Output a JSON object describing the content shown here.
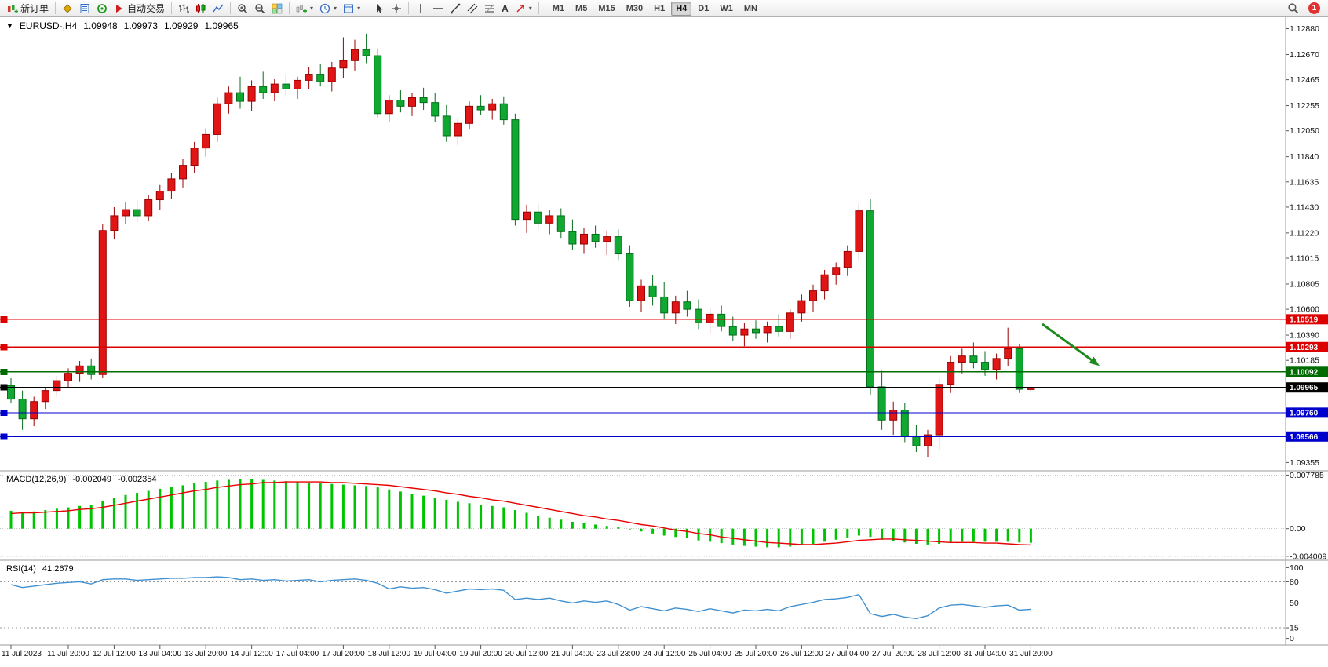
{
  "toolbar": {
    "new_order_label": "新订单",
    "autotrading_label": "自动交易",
    "timeframes": [
      "M1",
      "M5",
      "M15",
      "M30",
      "H1",
      "H4",
      "D1",
      "W1",
      "MN"
    ],
    "active_timeframe": "H4",
    "notification_count": "1"
  },
  "chart_header": {
    "symbol_period": "EURUSD-,H4",
    "open": "1.09948",
    "high": "1.09973",
    "low": "1.09929",
    "close": "1.09965"
  },
  "indicators": {
    "macd": {
      "name": "MACD(12,26,9)",
      "value_main": "-0.002049",
      "value_signal": "-0.002354"
    },
    "rsi": {
      "name": "RSI(14)",
      "value": "41.2679"
    }
  },
  "colors": {
    "bull": "#e01515",
    "bull_dark": "#9b0000",
    "bear": "#0fa830",
    "bear_dark": "#056d1c",
    "accent_red_line": "#dd0000",
    "accent_green_line": "#006b00",
    "accent_blue_line": "#0000cc",
    "current_price_line": "#000000"
  },
  "chart_data": {
    "type": "candlestick",
    "symbol": "EURUSD-",
    "timeframe": "H4",
    "price_range_view": [
      1.093,
      1.1296
    ],
    "price_axis_ticks": [
      1.1288,
      1.1267,
      1.12465,
      1.12255,
      1.1205,
      1.1184,
      1.11635,
      1.1143,
      1.1122,
      1.11015,
      1.10805,
      1.106,
      1.1039,
      1.10185,
      1.09355
    ],
    "candles": [
      [
        1.0998,
        1.1004,
        1.0984,
        1.0987
      ],
      [
        1.0987,
        1.0994,
        1.0962,
        1.0971
      ],
      [
        1.0971,
        1.0989,
        1.0965,
        1.0985
      ],
      [
        1.0985,
        1.0997,
        1.0979,
        1.0994
      ],
      [
        1.0994,
        1.1006,
        1.0989,
        1.1002
      ],
      [
        1.1002,
        1.1012,
        1.0996,
        1.1008
      ],
      [
        1.1008,
        1.1018,
        1.1001,
        1.1014
      ],
      [
        1.1014,
        1.102,
        1.1003,
        1.1007
      ],
      [
        1.1007,
        1.1129,
        1.1004,
        1.1124
      ],
      [
        1.1124,
        1.1143,
        1.1117,
        1.1136
      ],
      [
        1.1136,
        1.1147,
        1.1129,
        1.1141
      ],
      [
        1.1141,
        1.1149,
        1.1131,
        1.1136
      ],
      [
        1.1136,
        1.1153,
        1.1132,
        1.1149
      ],
      [
        1.1149,
        1.1161,
        1.1141,
        1.1156
      ],
      [
        1.1156,
        1.1171,
        1.115,
        1.1166
      ],
      [
        1.1166,
        1.1182,
        1.1159,
        1.1177
      ],
      [
        1.1177,
        1.1196,
        1.1171,
        1.1191
      ],
      [
        1.1191,
        1.1207,
        1.1184,
        1.1202
      ],
      [
        1.1202,
        1.1232,
        1.1196,
        1.1227
      ],
      [
        1.1227,
        1.1241,
        1.1219,
        1.1236
      ],
      [
        1.1236,
        1.1249,
        1.1223,
        1.1229
      ],
      [
        1.1229,
        1.1246,
        1.1221,
        1.1241
      ],
      [
        1.1241,
        1.1253,
        1.1231,
        1.1236
      ],
      [
        1.1236,
        1.1247,
        1.1229,
        1.1243
      ],
      [
        1.1243,
        1.1251,
        1.1233,
        1.1239
      ],
      [
        1.1239,
        1.1249,
        1.1231,
        1.1246
      ],
      [
        1.1246,
        1.1257,
        1.1239,
        1.1251
      ],
      [
        1.1251,
        1.1259,
        1.1241,
        1.1245
      ],
      [
        1.1245,
        1.1261,
        1.1237,
        1.1256
      ],
      [
        1.1256,
        1.1281,
        1.1248,
        1.1262
      ],
      [
        1.1262,
        1.1279,
        1.1254,
        1.1271
      ],
      [
        1.1271,
        1.1284,
        1.126,
        1.1266
      ],
      [
        1.1266,
        1.1272,
        1.1216,
        1.1219
      ],
      [
        1.1219,
        1.1234,
        1.1212,
        1.123
      ],
      [
        1.123,
        1.1238,
        1.122,
        1.1225
      ],
      [
        1.1225,
        1.1236,
        1.1217,
        1.1232
      ],
      [
        1.1232,
        1.124,
        1.1222,
        1.1228
      ],
      [
        1.1228,
        1.1236,
        1.1212,
        1.1217
      ],
      [
        1.1217,
        1.1226,
        1.1196,
        1.1201
      ],
      [
        1.1201,
        1.1215,
        1.1193,
        1.1211
      ],
      [
        1.1211,
        1.1229,
        1.1206,
        1.1225
      ],
      [
        1.1225,
        1.1234,
        1.1218,
        1.1222
      ],
      [
        1.1222,
        1.1231,
        1.1214,
        1.1227
      ],
      [
        1.1227,
        1.1233,
        1.121,
        1.1214
      ],
      [
        1.1214,
        1.1219,
        1.1128,
        1.1133
      ],
      [
        1.1133,
        1.1145,
        1.1122,
        1.1139
      ],
      [
        1.1139,
        1.1146,
        1.1125,
        1.113
      ],
      [
        1.113,
        1.1141,
        1.1121,
        1.1136
      ],
      [
        1.1136,
        1.1142,
        1.1118,
        1.1123
      ],
      [
        1.1123,
        1.1133,
        1.1108,
        1.1113
      ],
      [
        1.1113,
        1.1126,
        1.1105,
        1.1121
      ],
      [
        1.1121,
        1.1128,
        1.111,
        1.1115
      ],
      [
        1.1115,
        1.1124,
        1.1104,
        1.1119
      ],
      [
        1.1119,
        1.1125,
        1.11,
        1.1105
      ],
      [
        1.1105,
        1.1112,
        1.1062,
        1.1067
      ],
      [
        1.1067,
        1.1084,
        1.1058,
        1.1079
      ],
      [
        1.1079,
        1.1088,
        1.1063,
        1.107
      ],
      [
        1.107,
        1.1082,
        1.1052,
        1.1057
      ],
      [
        1.1057,
        1.1071,
        1.1048,
        1.1066
      ],
      [
        1.1066,
        1.1075,
        1.1054,
        1.106
      ],
      [
        1.106,
        1.1068,
        1.1044,
        1.1049
      ],
      [
        1.1049,
        1.1061,
        1.104,
        1.1056
      ],
      [
        1.1056,
        1.1063,
        1.1042,
        1.1046
      ],
      [
        1.1046,
        1.1054,
        1.1034,
        1.1039
      ],
      [
        1.1039,
        1.1049,
        1.103,
        1.1044
      ],
      [
        1.1044,
        1.1051,
        1.1036,
        1.1041
      ],
      [
        1.1041,
        1.105,
        1.1033,
        1.1046
      ],
      [
        1.1046,
        1.1056,
        1.1038,
        1.1042
      ],
      [
        1.1042,
        1.106,
        1.1036,
        1.1057
      ],
      [
        1.1057,
        1.1072,
        1.105,
        1.1067
      ],
      [
        1.1067,
        1.108,
        1.1058,
        1.1075
      ],
      [
        1.1075,
        1.1092,
        1.1068,
        1.1088
      ],
      [
        1.1088,
        1.1098,
        1.108,
        1.1094
      ],
      [
        1.1094,
        1.1112,
        1.1087,
        1.1107
      ],
      [
        1.1107,
        1.1146,
        1.11,
        1.114
      ],
      [
        1.114,
        1.115,
        1.099,
        1.0997
      ],
      [
        1.0997,
        1.101,
        1.0962,
        1.097
      ],
      [
        1.097,
        1.0985,
        1.0958,
        1.0978
      ],
      [
        1.0978,
        1.0984,
        1.0952,
        1.0957
      ],
      [
        1.0957,
        1.0966,
        1.0944,
        1.0949
      ],
      [
        1.0949,
        1.0962,
        1.094,
        1.0958
      ],
      [
        1.0958,
        1.1004,
        1.0946,
        1.0999
      ],
      [
        1.0999,
        1.1022,
        1.0992,
        1.1017
      ],
      [
        1.1017,
        1.1028,
        1.1008,
        1.1022
      ],
      [
        1.1022,
        1.1033,
        1.1012,
        1.1017
      ],
      [
        1.1017,
        1.1026,
        1.1006,
        1.1011
      ],
      [
        1.1011,
        1.1024,
        1.1003,
        1.102
      ],
      [
        1.102,
        1.1045,
        1.1014,
        1.1028
      ],
      [
        1.1028,
        1.1032,
        1.0992,
        1.0995
      ],
      [
        1.09948,
        1.09973,
        1.09929,
        1.09965
      ]
    ],
    "time_labels": {
      "bars": [
        0,
        5,
        9,
        13,
        17,
        21,
        25,
        29,
        33,
        37,
        41,
        45,
        49,
        53,
        57,
        61,
        65,
        69,
        73,
        77,
        81,
        85,
        89
      ],
      "texts": [
        "11 Jul 2023",
        "11 Jul 20:00",
        "12 Jul 12:00",
        "13 Jul 04:00",
        "13 Jul 20:00",
        "14 Jul 12:00",
        "17 Jul 04:00",
        "17 Jul 20:00",
        "18 Jul 12:00",
        "19 Jul 04:00",
        "19 Jul 20:00",
        "20 Jul 12:00",
        "21 Jul 04:00",
        "23 Jul 23:00",
        "24 Jul 12:00",
        "25 Jul 04:00",
        "25 Jul 20:00",
        "26 Jul 12:00",
        "27 Jul 04:00",
        "27 Jul 20:00",
        "28 Jul 12:00",
        "31 Jul 04:00",
        "31 Jul 20:00"
      ]
    },
    "horizontal_lines": [
      {
        "price": 1.10519,
        "label": "1.10519",
        "color": "#dd0000",
        "role": "resistance-line"
      },
      {
        "price": 1.10293,
        "label": "1.10293",
        "color": "#dd0000",
        "role": "resistance-line"
      },
      {
        "price": 1.10092,
        "label": "1.10092",
        "color": "#006b00",
        "role": "support-line"
      },
      {
        "price": 1.09965,
        "label": "1.09965",
        "color": "#000000",
        "role": "current-price-line"
      },
      {
        "price": 1.0976,
        "label": "1.09760",
        "color": "#0000cc",
        "role": "support-line"
      },
      {
        "price": 1.09566,
        "label": "1.09566",
        "color": "#0000cc",
        "role": "support-line"
      }
    ],
    "arrow_annotation": {
      "from_bar": 90,
      "from_price": 1.1048,
      "to_bar": 95,
      "to_price": 1.1014,
      "color": "#1e8a1e"
    },
    "macd": {
      "range": [
        -0.00425,
        0.00795
      ],
      "axis_ticks": [
        0.007785,
        0,
        -0.004009
      ],
      "histogram_color": "#00c400",
      "signal_color": "#e80000",
      "histogram": [
        0.0026,
        0.0024,
        0.0025,
        0.0027,
        0.0029,
        0.0031,
        0.0033,
        0.0034,
        0.004,
        0.0045,
        0.0049,
        0.0052,
        0.0055,
        0.0058,
        0.0061,
        0.0063,
        0.0066,
        0.0068,
        0.007,
        0.0071,
        0.0072,
        0.0072,
        0.0071,
        0.007,
        0.0069,
        0.0068,
        0.0067,
        0.0066,
        0.0065,
        0.0064,
        0.0063,
        0.0062,
        0.006,
        0.0057,
        0.0054,
        0.0051,
        0.0048,
        0.0045,
        0.0042,
        0.0039,
        0.0037,
        0.0035,
        0.0033,
        0.0031,
        0.0027,
        0.0023,
        0.0019,
        0.0016,
        0.0013,
        0.001,
        0.0008,
        0.0006,
        0.0004,
        0.0002,
        -0.0001,
        -0.0004,
        -0.0007,
        -0.001,
        -0.0012,
        -0.0014,
        -0.0017,
        -0.0019,
        -0.0021,
        -0.0023,
        -0.0025,
        -0.0026,
        -0.0027,
        -0.0027,
        -0.0026,
        -0.0024,
        -0.0022,
        -0.0019,
        -0.0016,
        -0.0013,
        -0.001,
        -0.0012,
        -0.0016,
        -0.0018,
        -0.002,
        -0.0022,
        -0.0023,
        -0.0022,
        -0.002,
        -0.0019,
        -0.0019,
        -0.0019,
        -0.0019,
        -0.0019,
        -0.002,
        -0.002049
      ],
      "signal": [
        0.0022,
        0.0023,
        0.0023,
        0.0024,
        0.0025,
        0.0026,
        0.0028,
        0.0029,
        0.0031,
        0.0034,
        0.0037,
        0.004,
        0.0043,
        0.0046,
        0.0049,
        0.0052,
        0.0055,
        0.0057,
        0.006,
        0.0062,
        0.0064,
        0.0065,
        0.0067,
        0.0067,
        0.0068,
        0.0068,
        0.0068,
        0.0068,
        0.0067,
        0.0067,
        0.0066,
        0.0065,
        0.0064,
        0.0063,
        0.0061,
        0.0059,
        0.0057,
        0.0055,
        0.0052,
        0.005,
        0.0047,
        0.0045,
        0.0042,
        0.004,
        0.0037,
        0.0034,
        0.0031,
        0.0028,
        0.0025,
        0.0022,
        0.0019,
        0.0017,
        0.0014,
        0.0012,
        0.0009,
        0.0006,
        0.0004,
        0.0001,
        -0.0002,
        -0.0004,
        -0.0007,
        -0.0009,
        -0.0012,
        -0.0014,
        -0.0016,
        -0.0018,
        -0.002,
        -0.0021,
        -0.0022,
        -0.0023,
        -0.0023,
        -0.0022,
        -0.0021,
        -0.0019,
        -0.0017,
        -0.0016,
        -0.0015,
        -0.0015,
        -0.0016,
        -0.0017,
        -0.0018,
        -0.0019,
        -0.002,
        -0.002,
        -0.002,
        -0.0021,
        -0.0021,
        -0.0022,
        -0.0023,
        -0.002354
      ]
    },
    "rsi": {
      "period": 14,
      "range": [
        0,
        100
      ],
      "levels": [
        80,
        50,
        15
      ],
      "axis_ticks": [
        100,
        80,
        50,
        15,
        0
      ],
      "line_color": "#4090d0",
      "values": [
        76,
        72,
        74,
        76,
        78,
        79,
        80,
        77,
        83,
        84,
        84,
        82,
        83,
        84,
        85,
        85,
        86,
        86,
        87,
        86,
        83,
        84,
        82,
        83,
        81,
        82,
        83,
        80,
        82,
        83,
        84,
        82,
        78,
        70,
        73,
        71,
        72,
        69,
        64,
        67,
        70,
        69,
        70,
        68,
        55,
        57,
        55,
        57,
        53,
        50,
        53,
        51,
        53,
        48,
        40,
        45,
        42,
        39,
        43,
        41,
        38,
        42,
        39,
        36,
        40,
        39,
        41,
        39,
        45,
        48,
        51,
        55,
        56,
        58,
        62,
        35,
        31,
        34,
        30,
        28,
        32,
        43,
        47,
        48,
        46,
        44,
        46,
        47,
        40,
        41.2679
      ]
    }
  }
}
